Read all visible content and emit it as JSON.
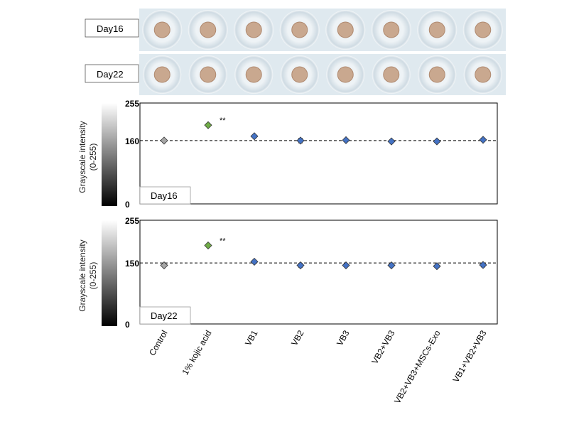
{
  "photo_rows": [
    {
      "label": "Day16",
      "wells": 8
    },
    {
      "label": "Day22",
      "wells": 8
    }
  ],
  "colors": {
    "control": "#a6a6a6",
    "positive": "#70ad47",
    "treatment": "#4472c4",
    "plate": "#dfe9ef",
    "pellet": "#c9a88f"
  },
  "chart_data": [
    {
      "type": "scatter",
      "panel_label": "Day16",
      "ylabel": [
        "Grayscale intensity",
        "(0-255)"
      ],
      "ylim": [
        0,
        255
      ],
      "yticks": [
        "255",
        "160",
        "0"
      ],
      "yticks_values": [
        255,
        160,
        0
      ],
      "reference_line": 160,
      "categories": [
        "Control",
        "1% kojic acid",
        "VB1",
        "VB2",
        "VB3",
        "VB2+VB3",
        "VB2+VB3+MSCs-Exo",
        "VB1+VB2+VB3"
      ],
      "values": [
        160,
        199,
        171,
        160,
        161,
        158,
        158,
        162
      ],
      "errors": [
        2,
        2,
        3,
        6,
        2,
        2,
        2,
        4
      ],
      "annotations": [
        {
          "category": "1% kojic acid",
          "text": "**"
        }
      ]
    },
    {
      "type": "scatter",
      "panel_label": "Day22",
      "ylabel": [
        "Grayscale intensity",
        "(0-255)"
      ],
      "ylim": [
        0,
        255
      ],
      "yticks": [
        "255",
        "150",
        "0"
      ],
      "yticks_values": [
        255,
        150,
        0
      ],
      "reference_line": 150,
      "categories": [
        "Control",
        "1% kojic acid",
        "VB1",
        "VB2",
        "VB3",
        "VB2+VB3",
        "VB2+VB3+MSCs-Exo",
        "VB1+VB2+VB3"
      ],
      "values": [
        144,
        193,
        153,
        144,
        144,
        144,
        142,
        145
      ],
      "errors": [
        3,
        2,
        3,
        5,
        3,
        2,
        3,
        5
      ],
      "annotations": [
        {
          "category": "1% kojic acid",
          "text": "**"
        }
      ]
    }
  ]
}
